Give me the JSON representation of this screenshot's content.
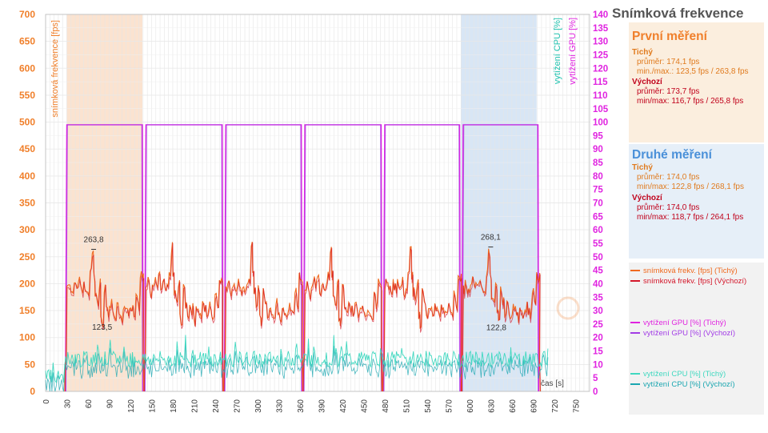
{
  "title": "Snímková frekvence",
  "colors": {
    "fps_quiet": "#f06a1f",
    "fps_default": "#d4172a",
    "gpu_quiet": "#e024e0",
    "gpu_default": "#a23ce6",
    "cpu_quiet": "#40d8c0",
    "cpu_default": "#1aa6b0",
    "left_axis": "#f07f2a",
    "right_axis": "#e024e0",
    "cpu_axis": "#22c3b0"
  },
  "panels": {
    "first": {
      "title": "První měření",
      "quiet": {
        "label": "Tichý",
        "avg": "průměr: 174,1 fps",
        "minmax": "min./max.: 123,5 fps / 263,8 fps"
      },
      "default": {
        "label": "Výchozí",
        "avg": "průměr: 173,7 fps",
        "minmax": "min/max: 116,7 fps / 265,8 fps"
      }
    },
    "second": {
      "title": "Druhé měření",
      "quiet": {
        "label": "Tichý",
        "avg": "průměr: 174,0 fps",
        "minmax": "min/max: 122,8 fps / 268,1 fps"
      },
      "default": {
        "label": "Výchozí",
        "avg": "průměr: 174,0 fps",
        "minmax": "min/max: 118,7 fps / 264,1 fps"
      }
    }
  },
  "legend": [
    {
      "label": "snímková frekv. [fps] (Tichý)",
      "color": "#f06a1f"
    },
    {
      "label": "snímková frekv. [fps] (Výchozí)",
      "color": "#d4172a"
    },
    {
      "label": "vytížení GPU [%] (Tichý)",
      "color": "#e024e0"
    },
    {
      "label": "vytížení GPU [%] (Výchozí)",
      "color": "#a23ce6"
    },
    {
      "label": "vytížení CPU [%] (Tichý)",
      "color": "#40d8c0"
    },
    {
      "label": "vytížení CPU [%] (Výchozí)",
      "color": "#1aa6b0"
    }
  ],
  "chart_data": {
    "type": "line",
    "xlabel": "čas [s]",
    "ylabel_left": "snímková frekvence [fps]",
    "ylabel_right_cpu": "vytížení CPU [%]",
    "ylabel_right_gpu": "vytížení GPU [%]",
    "xlim": [
      0,
      770
    ],
    "ylim_left": [
      0,
      700
    ],
    "ylim_right": [
      0,
      140
    ],
    "x_ticks": [
      0,
      30,
      60,
      90,
      120,
      150,
      180,
      210,
      240,
      270,
      300,
      330,
      360,
      390,
      420,
      450,
      480,
      510,
      540,
      570,
      600,
      630,
      660,
      690,
      720,
      750
    ],
    "y_left_ticks": [
      0,
      50,
      100,
      150,
      200,
      250,
      300,
      350,
      400,
      450,
      500,
      550,
      600,
      650,
      700
    ],
    "y_right_ticks": [
      0,
      5,
      10,
      15,
      20,
      25,
      30,
      35,
      40,
      45,
      50,
      55,
      60,
      65,
      70,
      75,
      80,
      85,
      90,
      95,
      100,
      105,
      110,
      115,
      120,
      125,
      130,
      135,
      140
    ],
    "grid": true,
    "highlight_regions": [
      {
        "x": [
          30,
          137
        ],
        "color": "#fbe3d0"
      },
      {
        "x": [
          588,
          695
        ],
        "color": "#d8e6f5"
      }
    ],
    "annotations": [
      {
        "x": 68,
        "y": 263.8,
        "text": "263,8"
      },
      {
        "x": 80,
        "y": 123.5,
        "text": "123,5"
      },
      {
        "x": 630,
        "y": 268.1,
        "text": "268,1"
      },
      {
        "x": 638,
        "y": 122.8,
        "text": "122,8"
      }
    ],
    "gpu_segments": [
      {
        "start": 30,
        "end": 137,
        "value": 99
      },
      {
        "start": 142,
        "end": 250,
        "value": 99
      },
      {
        "start": 255,
        "end": 362,
        "value": 99
      },
      {
        "start": 367,
        "end": 475,
        "value": 99
      },
      {
        "start": 480,
        "end": 586,
        "value": 99
      },
      {
        "start": 591,
        "end": 697,
        "value": 99
      }
    ],
    "fps_runs": [
      30,
      142,
      255,
      367,
      480,
      591
    ],
    "fps_run_length": 107,
    "fps_pattern": [
      [
        0,
        195
      ],
      [
        3,
        205
      ],
      [
        6,
        185
      ],
      [
        9,
        190
      ],
      [
        12,
        200
      ],
      [
        15,
        195
      ],
      [
        18,
        210
      ],
      [
        21,
        190
      ],
      [
        24,
        200
      ],
      [
        27,
        185
      ],
      [
        30,
        190
      ],
      [
        33,
        215
      ],
      [
        36,
        263
      ],
      [
        38,
        215
      ],
      [
        40,
        180
      ],
      [
        43,
        165
      ],
      [
        46,
        195
      ],
      [
        48,
        140
      ],
      [
        50,
        125
      ],
      [
        53,
        190
      ],
      [
        56,
        160
      ],
      [
        59,
        145
      ],
      [
        62,
        160
      ],
      [
        65,
        150
      ],
      [
        68,
        135
      ],
      [
        71,
        160
      ],
      [
        74,
        150
      ],
      [
        77,
        140
      ],
      [
        80,
        160
      ],
      [
        83,
        150
      ],
      [
        86,
        145
      ],
      [
        89,
        155
      ],
      [
        92,
        150
      ],
      [
        95,
        140
      ],
      [
        98,
        185
      ],
      [
        101,
        160
      ],
      [
        104,
        215
      ],
      [
        107,
        205
      ]
    ],
    "cpu_mean": 12
  }
}
